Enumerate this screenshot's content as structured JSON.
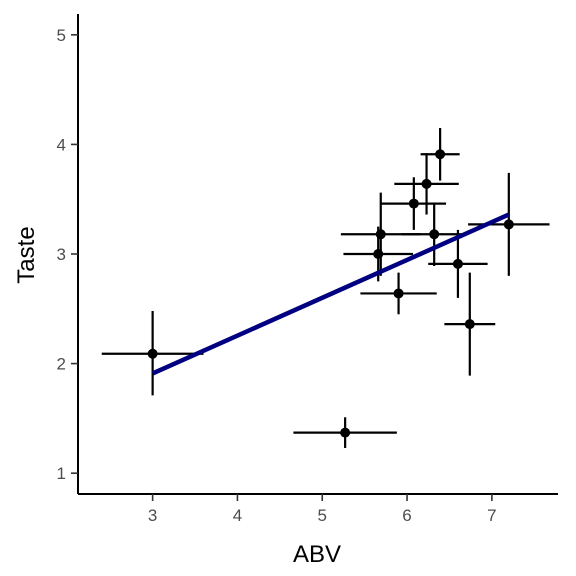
{
  "chart_data": {
    "type": "scatter",
    "title": "",
    "xlabel": "ABV",
    "ylabel": "Taste",
    "xlim": [
      2.12,
      7.78
    ],
    "ylim": [
      0.81,
      5.19
    ],
    "xticks": [
      3,
      4,
      5,
      6,
      7
    ],
    "yticks": [
      1,
      2,
      3,
      4,
      5
    ],
    "grid": false,
    "legend": "none",
    "colors": {
      "points": "#000000",
      "errorbars": "#000000",
      "fit_line": "#000080"
    },
    "points": [
      {
        "x": 3.0,
        "y": 2.09,
        "x_err": [
          2.4,
          3.6
        ],
        "y_err": [
          1.71,
          2.48
        ]
      },
      {
        "x": 5.27,
        "y": 1.37,
        "x_err": [
          4.66,
          5.88
        ],
        "y_err": [
          1.23,
          1.51
        ]
      },
      {
        "x": 5.66,
        "y": 3.0,
        "x_err": [
          5.25,
          6.07
        ],
        "y_err": [
          2.75,
          3.25
        ]
      },
      {
        "x": 5.69,
        "y": 3.18,
        "x_err": [
          5.22,
          6.16
        ],
        "y_err": [
          2.8,
          3.56
        ]
      },
      {
        "x": 5.9,
        "y": 2.64,
        "x_err": [
          5.45,
          6.35
        ],
        "y_err": [
          2.45,
          2.83
        ]
      },
      {
        "x": 6.08,
        "y": 3.46,
        "x_err": [
          5.7,
          6.46
        ],
        "y_err": [
          3.22,
          3.7
        ]
      },
      {
        "x": 6.23,
        "y": 3.64,
        "x_err": [
          5.85,
          6.61
        ],
        "y_err": [
          3.36,
          3.92
        ]
      },
      {
        "x": 6.32,
        "y": 3.18,
        "x_err": [
          5.94,
          6.7
        ],
        "y_err": [
          2.89,
          3.47
        ]
      },
      {
        "x": 6.39,
        "y": 3.91,
        "x_err": [
          6.16,
          6.62
        ],
        "y_err": [
          3.67,
          4.15
        ]
      },
      {
        "x": 6.6,
        "y": 2.91,
        "x_err": [
          6.25,
          6.95
        ],
        "y_err": [
          2.6,
          3.22
        ]
      },
      {
        "x": 6.74,
        "y": 2.36,
        "x_err": [
          6.44,
          7.04
        ],
        "y_err": [
          1.89,
          2.83
        ]
      },
      {
        "x": 7.2,
        "y": 3.27,
        "x_err": [
          6.72,
          7.68
        ],
        "y_err": [
          2.8,
          3.74
        ]
      }
    ],
    "fit_line": {
      "x": [
        3.0,
        7.2
      ],
      "y": [
        1.91,
        3.36
      ]
    }
  }
}
